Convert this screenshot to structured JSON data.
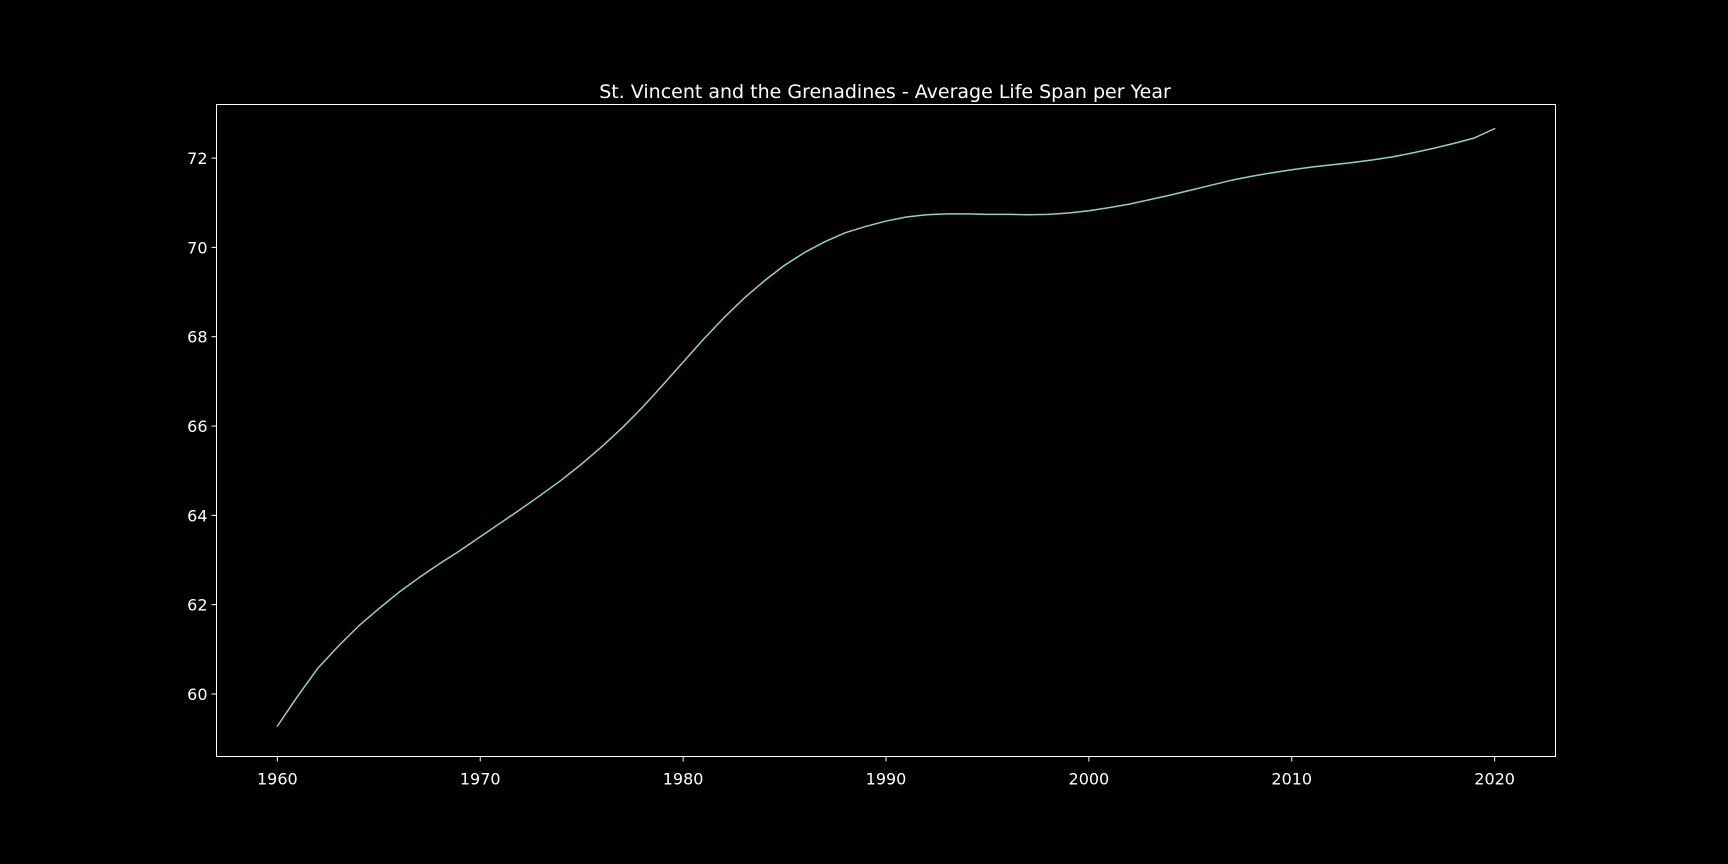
{
  "chart_data": {
    "type": "line",
    "title": "St. Vincent and the Grenadines - Average Life Span per Year",
    "xlabel": "",
    "ylabel": "",
    "xlim": [
      1957,
      2023
    ],
    "ylim": [
      58.6,
      73.2
    ],
    "x_ticks": [
      1960,
      1970,
      1980,
      1990,
      2000,
      2010,
      2020
    ],
    "y_ticks": [
      60,
      62,
      64,
      66,
      68,
      70,
      72
    ],
    "grid": false,
    "legend": "none",
    "colors": {
      "background": "#000000",
      "line": "#8dd3c7",
      "axes": "#ffffff",
      "text": "#ffffff"
    },
    "series": [
      {
        "x": [
          1960,
          1961,
          1962,
          1963,
          1964,
          1965,
          1966,
          1967,
          1968,
          1969,
          1970,
          1971,
          1972,
          1973,
          1974,
          1975,
          1976,
          1977,
          1978,
          1979,
          1980,
          1981,
          1982,
          1983,
          1984,
          1985,
          1986,
          1987,
          1988,
          1989,
          1990,
          1991,
          1992,
          1993,
          1994,
          1995,
          1996,
          1997,
          1998,
          1999,
          2000,
          2001,
          2002,
          2003,
          2004,
          2005,
          2006,
          2007,
          2008,
          2009,
          2010,
          2011,
          2012,
          2013,
          2014,
          2015,
          2016,
          2017,
          2018,
          2019,
          2020
        ],
        "y": [
          59.28,
          59.95,
          60.58,
          61.07,
          61.52,
          61.91,
          62.28,
          62.61,
          62.92,
          63.21,
          63.52,
          63.83,
          64.14,
          64.46,
          64.79,
          65.15,
          65.54,
          65.96,
          66.42,
          66.92,
          67.43,
          67.94,
          68.42,
          68.86,
          69.25,
          69.6,
          69.89,
          70.13,
          70.33,
          70.47,
          70.59,
          70.68,
          70.73,
          70.75,
          70.75,
          70.74,
          70.74,
          70.73,
          70.74,
          70.77,
          70.82,
          70.89,
          70.97,
          71.07,
          71.17,
          71.28,
          71.39,
          71.5,
          71.59,
          71.67,
          71.74,
          71.8,
          71.85,
          71.9,
          71.96,
          72.03,
          72.12,
          72.22,
          72.33,
          72.45,
          72.66
        ]
      }
    ]
  }
}
